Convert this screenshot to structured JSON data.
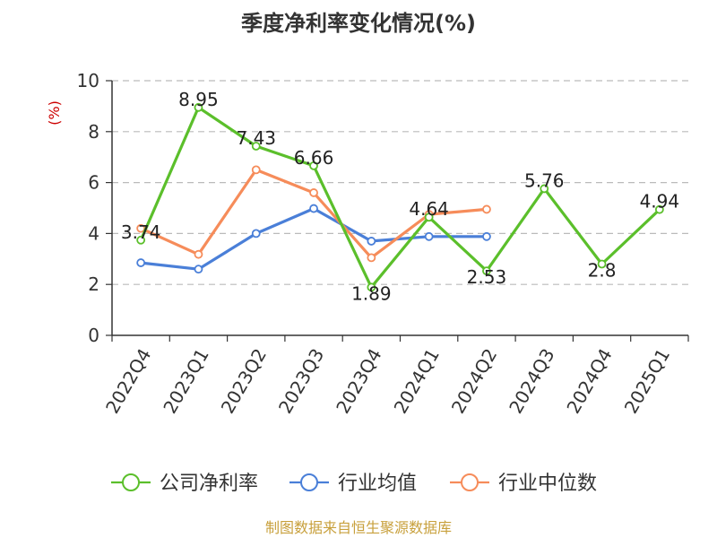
{
  "chart_data": {
    "type": "line",
    "title": "季度净利率变化情况(%)",
    "xlabel": "",
    "ylabel": "(%)",
    "ylim": [
      0,
      10
    ],
    "yticks": [
      0,
      2,
      4,
      6,
      8,
      10
    ],
    "grid": true,
    "legend_position": "bottom",
    "categories": [
      "2022Q4",
      "2023Q1",
      "2023Q2",
      "2023Q3",
      "2023Q4",
      "2024Q1",
      "2024Q2",
      "2024Q3",
      "2024Q4",
      "2025Q1"
    ],
    "series": [
      {
        "name": "公司净利率",
        "color": "#5bbf2b",
        "values": [
          3.74,
          8.95,
          7.43,
          6.66,
          1.89,
          4.64,
          2.53,
          5.76,
          2.8,
          4.94
        ],
        "labels": [
          "3.74",
          "8.95",
          "7.43",
          "6.66",
          "1.89",
          "4.64",
          "2.53",
          "5.76",
          "2.8",
          "4.94"
        ]
      },
      {
        "name": "行业均值",
        "color": "#4a7fd8",
        "values": [
          2.85,
          2.6,
          4.0,
          4.98,
          3.7,
          3.88,
          3.88,
          null,
          null,
          null
        ]
      },
      {
        "name": "行业中位数",
        "color": "#f68c5a",
        "values": [
          4.2,
          3.18,
          6.5,
          5.6,
          3.05,
          4.75,
          4.95,
          null,
          null,
          null
        ]
      }
    ],
    "source": "制图数据来自恒生聚源数据库"
  }
}
